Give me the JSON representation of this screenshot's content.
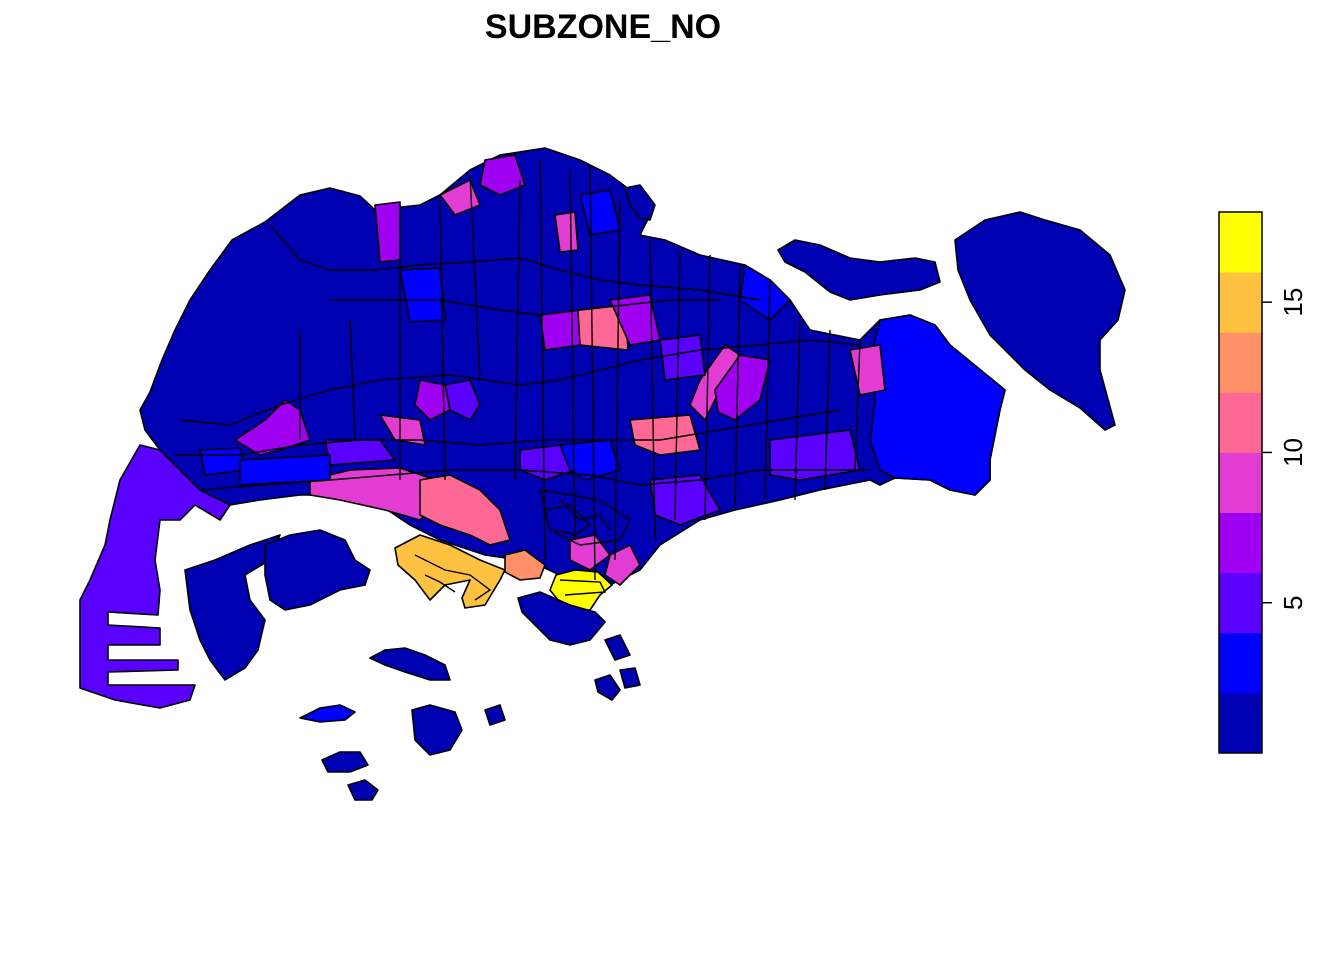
{
  "title": "SUBZONE_NO",
  "legend": {
    "ticks": [
      {
        "value": 5,
        "label": "5"
      },
      {
        "value": 10,
        "label": "10"
      },
      {
        "value": 15,
        "label": "15"
      }
    ],
    "range": [
      0,
      18
    ],
    "colors": [
      "#0000B3",
      "#0000FF",
      "#5A00FF",
      "#A000F2",
      "#E23CD2",
      "#FF6895",
      "#FF9067",
      "#FFC240",
      "#FFFF00"
    ]
  },
  "outline_color": "#000000"
}
